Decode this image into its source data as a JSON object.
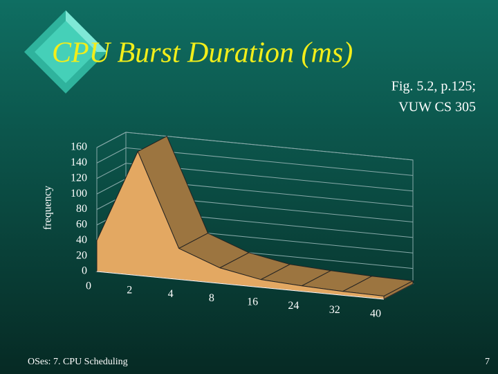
{
  "slide": {
    "title": "CPU Burst Duration (ms)",
    "note_lines": [
      "Fig. 5.2, p.125;",
      "VUW CS 305"
    ],
    "footer": "OSes: 7. CPU Scheduling",
    "page_number": "7"
  },
  "chart_data": {
    "type": "area3d",
    "ylabel": "frequency",
    "categories": [
      "0",
      "2",
      "4",
      "8",
      "16",
      "24",
      "32",
      "40"
    ],
    "values": [
      40,
      160,
      40,
      20,
      10,
      7,
      5,
      4
    ],
    "color": "#e3a862",
    "top_color": "#9c7540",
    "ylim": [
      0,
      160
    ],
    "yticks": [
      0,
      20,
      40,
      60,
      80,
      100,
      120,
      140,
      160
    ],
    "grid": true
  }
}
